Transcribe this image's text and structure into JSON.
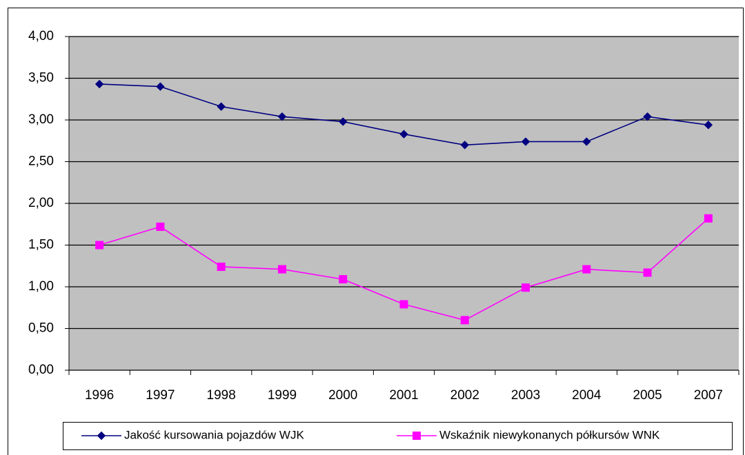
{
  "chart_data": {
    "type": "line",
    "categories": [
      "1996",
      "1997",
      "1998",
      "1999",
      "2000",
      "2001",
      "2002",
      "2003",
      "2004",
      "2005",
      "2007"
    ],
    "series": [
      {
        "name": "Jakość kursowania pojazdów  WJK",
        "color": "#000080",
        "marker": "diamond",
        "values": [
          3.43,
          3.4,
          3.16,
          3.04,
          2.98,
          2.83,
          2.7,
          2.74,
          2.74,
          3.04,
          2.94
        ]
      },
      {
        "name": "Wskaźnik niewykonanych półkursów  WNK",
        "color": "#ff00ff",
        "marker": "square",
        "values": [
          1.5,
          1.72,
          1.24,
          1.21,
          1.09,
          0.79,
          0.6,
          0.99,
          1.21,
          1.17,
          1.82
        ]
      }
    ],
    "ylim": [
      0,
      4
    ],
    "yticks": [
      {
        "value": 0,
        "label": "0,00"
      },
      {
        "value": 0.5,
        "label": "0,50"
      },
      {
        "value": 1,
        "label": "1,00"
      },
      {
        "value": 1.5,
        "label": "1,50"
      },
      {
        "value": 2,
        "label": "2,00"
      },
      {
        "value": 2.5,
        "label": "2,50"
      },
      {
        "value": 3,
        "label": "3,00"
      },
      {
        "value": 3.5,
        "label": "3,50"
      },
      {
        "value": 4,
        "label": "4,00"
      }
    ],
    "grid": true,
    "legend": "bottom",
    "plot_background": "#c0c0c0"
  }
}
